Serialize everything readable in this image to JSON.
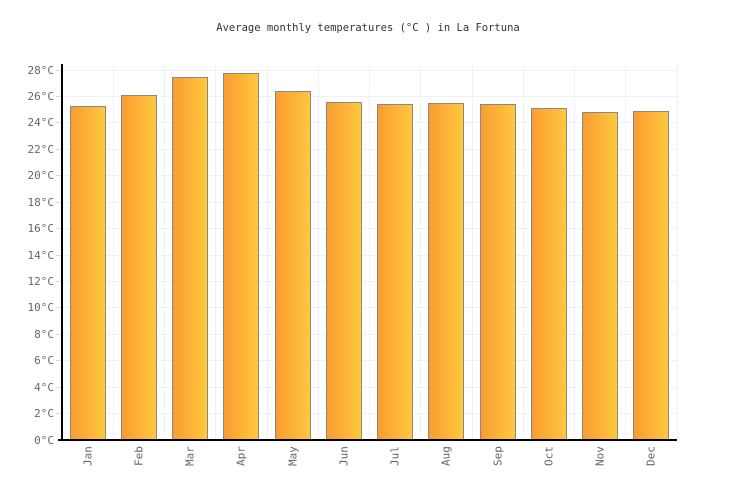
{
  "chart_data": {
    "type": "bar",
    "title": "Average monthly temperatures (°C ) in La Fortuna",
    "categories": [
      "Jan",
      "Feb",
      "Mar",
      "Apr",
      "May",
      "Jun",
      "Jul",
      "Aug",
      "Sep",
      "Oct",
      "Nov",
      "Dec"
    ],
    "values": [
      25.3,
      26.1,
      27.5,
      27.8,
      26.4,
      25.6,
      25.4,
      25.5,
      25.4,
      25.1,
      24.8,
      24.9
    ],
    "unit": "°C",
    "xlabel": "",
    "ylabel": "",
    "ylim": [
      0,
      28
    ],
    "y_tick_step": 2,
    "y_tick_labels": [
      "0°C",
      "2°C",
      "4°C",
      "6°C",
      "8°C",
      "10°C",
      "12°C",
      "14°C",
      "16°C",
      "18°C",
      "20°C",
      "22°C",
      "24°C",
      "26°C",
      "28°C"
    ],
    "grid": true,
    "legend_position": "none",
    "colors": {
      "bar_gradient_left": "#FA9C33",
      "bar_gradient_right": "#FFC83D",
      "bar_border": "#888888",
      "axis_line": "#000000",
      "grid_line": "#F0F0F0",
      "tick_mark": "#DDDDDD",
      "axis_label_text": "#666666",
      "title_text": "#333333",
      "background": "#FFFFFF"
    }
  }
}
